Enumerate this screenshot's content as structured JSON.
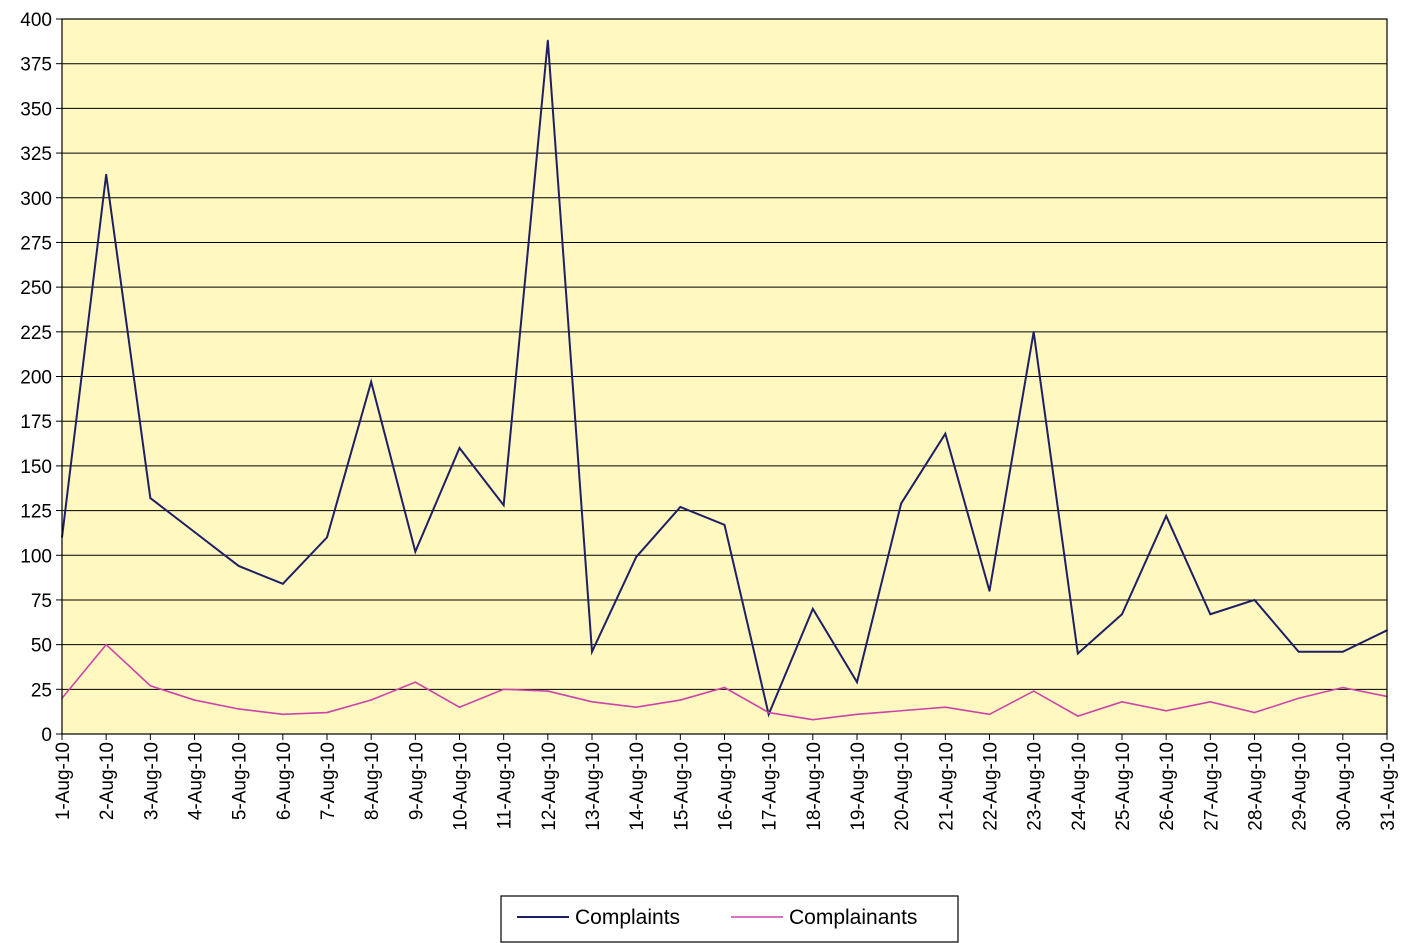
{
  "chart_data": {
    "type": "line",
    "title": "",
    "xlabel": "",
    "ylabel": "",
    "ylim": [
      0,
      400
    ],
    "yticks": [
      0,
      25,
      50,
      75,
      100,
      125,
      150,
      175,
      200,
      225,
      250,
      275,
      300,
      325,
      350,
      375,
      400
    ],
    "grid": true,
    "legend_position": "bottom-center",
    "plot_background": "#FFF8C0",
    "categories": [
      "1-Aug-10",
      "2-Aug-10",
      "3-Aug-10",
      "4-Aug-10",
      "5-Aug-10",
      "6-Aug-10",
      "7-Aug-10",
      "8-Aug-10",
      "9-Aug-10",
      "10-Aug-10",
      "11-Aug-10",
      "12-Aug-10",
      "13-Aug-10",
      "14-Aug-10",
      "15-Aug-10",
      "16-Aug-10",
      "17-Aug-10",
      "18-Aug-10",
      "19-Aug-10",
      "20-Aug-10",
      "21-Aug-10",
      "22-Aug-10",
      "23-Aug-10",
      "24-Aug-10",
      "25-Aug-10",
      "26-Aug-10",
      "27-Aug-10",
      "28-Aug-10",
      "29-Aug-10",
      "30-Aug-10",
      "31-Aug-10"
    ],
    "series": [
      {
        "name": "Complaints",
        "color": "#1F1F66",
        "values": [
          110,
          313,
          132,
          113,
          94,
          84,
          110,
          197,
          102,
          160,
          128,
          388,
          46,
          99,
          127,
          117,
          11,
          70,
          29,
          129,
          168,
          80,
          225,
          45,
          67,
          122,
          67,
          75,
          46,
          46,
          58
        ]
      },
      {
        "name": "Complainants",
        "color": "#CC44AA",
        "values": [
          20,
          50,
          27,
          19,
          14,
          11,
          12,
          19,
          29,
          15,
          25,
          24,
          18,
          15,
          19,
          26,
          12,
          8,
          11,
          13,
          15,
          11,
          24,
          10,
          18,
          13,
          18,
          12,
          20,
          26,
          21
        ]
      }
    ]
  }
}
